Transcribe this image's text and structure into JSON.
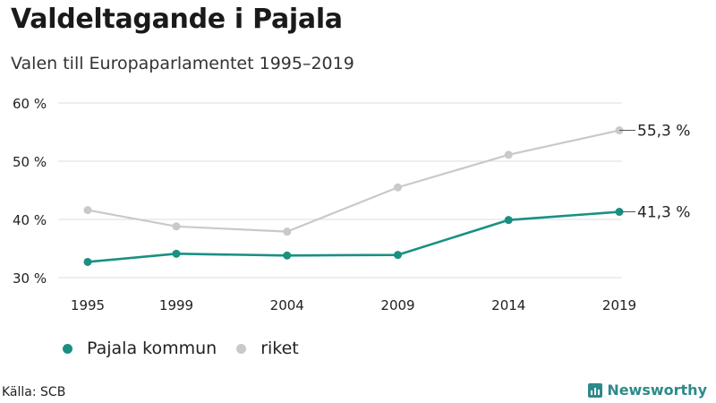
{
  "header": {
    "title": "Valdeltagande i Pajala",
    "subtitle": "Valen till Europaparlamentet 1995–2019"
  },
  "footer": {
    "source": "Källa: SCB",
    "brand": "Newsworthy"
  },
  "colors": {
    "series_pajala": "#1a9082",
    "series_riket": "#c9c9c9",
    "grid": "#dcdcdc"
  },
  "chart_data": {
    "type": "line",
    "title": "Valdeltagande i Pajala",
    "subtitle": "Valen till Europaparlamentet 1995–2019",
    "xlabel": "",
    "ylabel": "",
    "categories": [
      "1995",
      "1999",
      "2004",
      "2009",
      "2014",
      "2019"
    ],
    "ylim": [
      30,
      60
    ],
    "yticks": [
      30,
      40,
      50,
      60
    ],
    "ytick_labels": [
      "30 %",
      "40 %",
      "50 %",
      "60 %"
    ],
    "grid": true,
    "legend_position": "bottom-left",
    "series": [
      {
        "name": "Pajala kommun",
        "values": [
          32.7,
          34.1,
          33.8,
          33.9,
          39.9,
          41.3
        ],
        "end_label": "41,3 %"
      },
      {
        "name": "riket",
        "values": [
          41.6,
          38.8,
          37.9,
          45.5,
          51.1,
          55.3
        ],
        "end_label": "55,3 %"
      }
    ]
  }
}
